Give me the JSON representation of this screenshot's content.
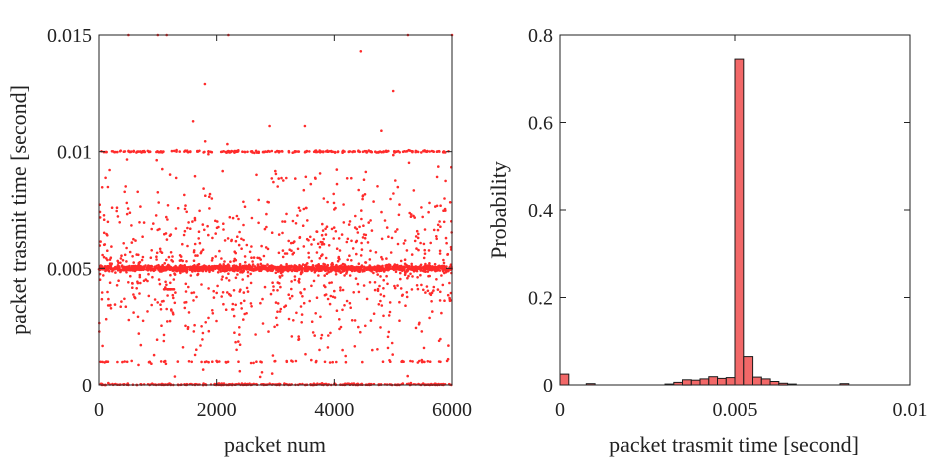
{
  "colors": {
    "scatter": "#ff2b2b",
    "bar_fill": "#f26868",
    "bar_edge": "#1a1a1a",
    "axes": "#222222"
  },
  "chart_data": [
    {
      "type": "scatter",
      "title": "",
      "xlabel": "packet num",
      "ylabel": "packet trasmit time [second]",
      "xlim": [
        0,
        6000
      ],
      "ylim": [
        0,
        0.015
      ],
      "xticks": [
        0,
        2000,
        4000,
        6000
      ],
      "xtick_labels": [
        "0",
        "2000",
        "4000",
        "6000"
      ],
      "yticks": [
        0,
        0.005,
        0.01,
        0.015
      ],
      "ytick_labels": [
        "0",
        "0.005",
        "0.01",
        "0.015"
      ],
      "grid": false,
      "series": [
        {
          "marker": "dot",
          "bands": [
            {
              "y": 0.005,
              "description_value": "dense band",
              "x_start": 0,
              "x_end": 6000
            },
            {
              "y": 0.01,
              "x_start": 0,
              "x_end": 6000
            },
            {
              "y": 0.0,
              "x_start": 0,
              "x_end": 6000
            },
            {
              "y": 0.001,
              "x_start": 0,
              "x_end": 6000
            },
            {
              "y": 0.0041,
              "x_start": 1100,
              "x_end": 1300
            }
          ],
          "scatter_range": [
            0.0,
            0.0105
          ],
          "outliers": [
            [
              500,
              0.015
            ],
            [
              1000,
              0.015
            ],
            [
              1150,
              0.015
            ],
            [
              2200,
              0.015
            ],
            [
              5250,
              0.015
            ],
            [
              6000,
              0.015
            ],
            [
              4450,
              0.0143
            ],
            [
              1800,
              0.0129
            ],
            [
              5000,
              0.0126
            ],
            [
              1600,
              0.0113
            ],
            [
              2900,
              0.0111
            ],
            [
              3500,
              0.0111
            ],
            [
              4800,
              0.0109
            ]
          ]
        }
      ]
    },
    {
      "type": "bar",
      "title": "",
      "xlabel": "packet trasmit time [second]",
      "ylabel": "Probability",
      "xlim": [
        0,
        0.01
      ],
      "ylim": [
        0,
        0.8
      ],
      "xticks": [
        0,
        0.005,
        0.01
      ],
      "xtick_labels": [
        "0",
        "0.005",
        "0.01"
      ],
      "yticks": [
        0,
        0.2,
        0.4,
        0.6,
        0.8
      ],
      "ytick_labels": [
        "0",
        "0.2",
        "0.4",
        "0.6",
        "0.8"
      ],
      "grid": false,
      "bin_width": 0.00025,
      "bins": [
        {
          "x": 0.0,
          "value": 0.025
        },
        {
          "x": 0.00075,
          "value": 0.003
        },
        {
          "x": 0.003,
          "value": 0.002
        },
        {
          "x": 0.00325,
          "value": 0.006
        },
        {
          "x": 0.0035,
          "value": 0.012
        },
        {
          "x": 0.00375,
          "value": 0.011
        },
        {
          "x": 0.004,
          "value": 0.014
        },
        {
          "x": 0.00425,
          "value": 0.019
        },
        {
          "x": 0.0045,
          "value": 0.015
        },
        {
          "x": 0.00475,
          "value": 0.017
        },
        {
          "x": 0.005,
          "value": 0.745
        },
        {
          "x": 0.00525,
          "value": 0.065
        },
        {
          "x": 0.0055,
          "value": 0.018
        },
        {
          "x": 0.00575,
          "value": 0.014
        },
        {
          "x": 0.006,
          "value": 0.008
        },
        {
          "x": 0.00625,
          "value": 0.004
        },
        {
          "x": 0.0065,
          "value": 0.002
        },
        {
          "x": 0.008,
          "value": 0.003
        },
        {
          "x": 0.01,
          "value": 0.012
        }
      ]
    }
  ]
}
